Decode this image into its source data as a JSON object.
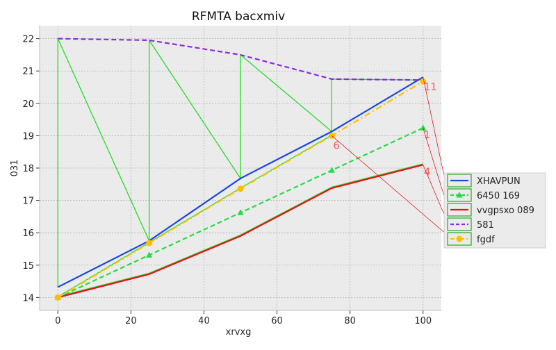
{
  "chart_data": {
    "type": "line",
    "title": "RFMTA bacxmiv",
    "xlabel": "xrvxg",
    "ylabel": "031",
    "xlim": [
      -5,
      105
    ],
    "ylim": [
      13.6,
      22.4
    ],
    "xticks": [
      "0",
      "20",
      "40",
      "60",
      "80",
      "100"
    ],
    "yticks": [
      "14",
      "15",
      "16",
      "17",
      "18",
      "19",
      "20",
      "21",
      "22"
    ],
    "grid": true,
    "legend_position": "right",
    "x": [
      0,
      25,
      50,
      75,
      100
    ],
    "series": [
      {
        "name": "XHAVPUN",
        "values": [
          14.32,
          15.75,
          17.68,
          19.13,
          20.81
        ],
        "color": "#1a47e6",
        "dash": "solid",
        "marker": "none"
      },
      {
        "name": "6450 169",
        "values": [
          14.0,
          15.31,
          16.62,
          17.93,
          19.24
        ],
        "color": "#22dd44",
        "dash": "dashed",
        "marker": "triangle"
      },
      {
        "name": "vvgpsxo 089",
        "values": [
          14.0,
          14.72,
          15.9,
          17.38,
          18.1
        ],
        "color": "#e8101a",
        "dash": "solid",
        "marker": "none"
      },
      {
        "name": "581",
        "values": [
          22.0,
          21.95,
          21.5,
          20.75,
          20.72
        ],
        "color": "#8a2be2",
        "dash": "dashed",
        "marker": "none"
      },
      {
        "name": "fgdf",
        "values": [
          14.0,
          15.68,
          17.36,
          19.0,
          20.68
        ],
        "color": "#ffbf00",
        "dash": "dashdot",
        "marker": "circle"
      }
    ],
    "annotations": [
      "11",
      "6",
      "1",
      "4"
    ]
  }
}
